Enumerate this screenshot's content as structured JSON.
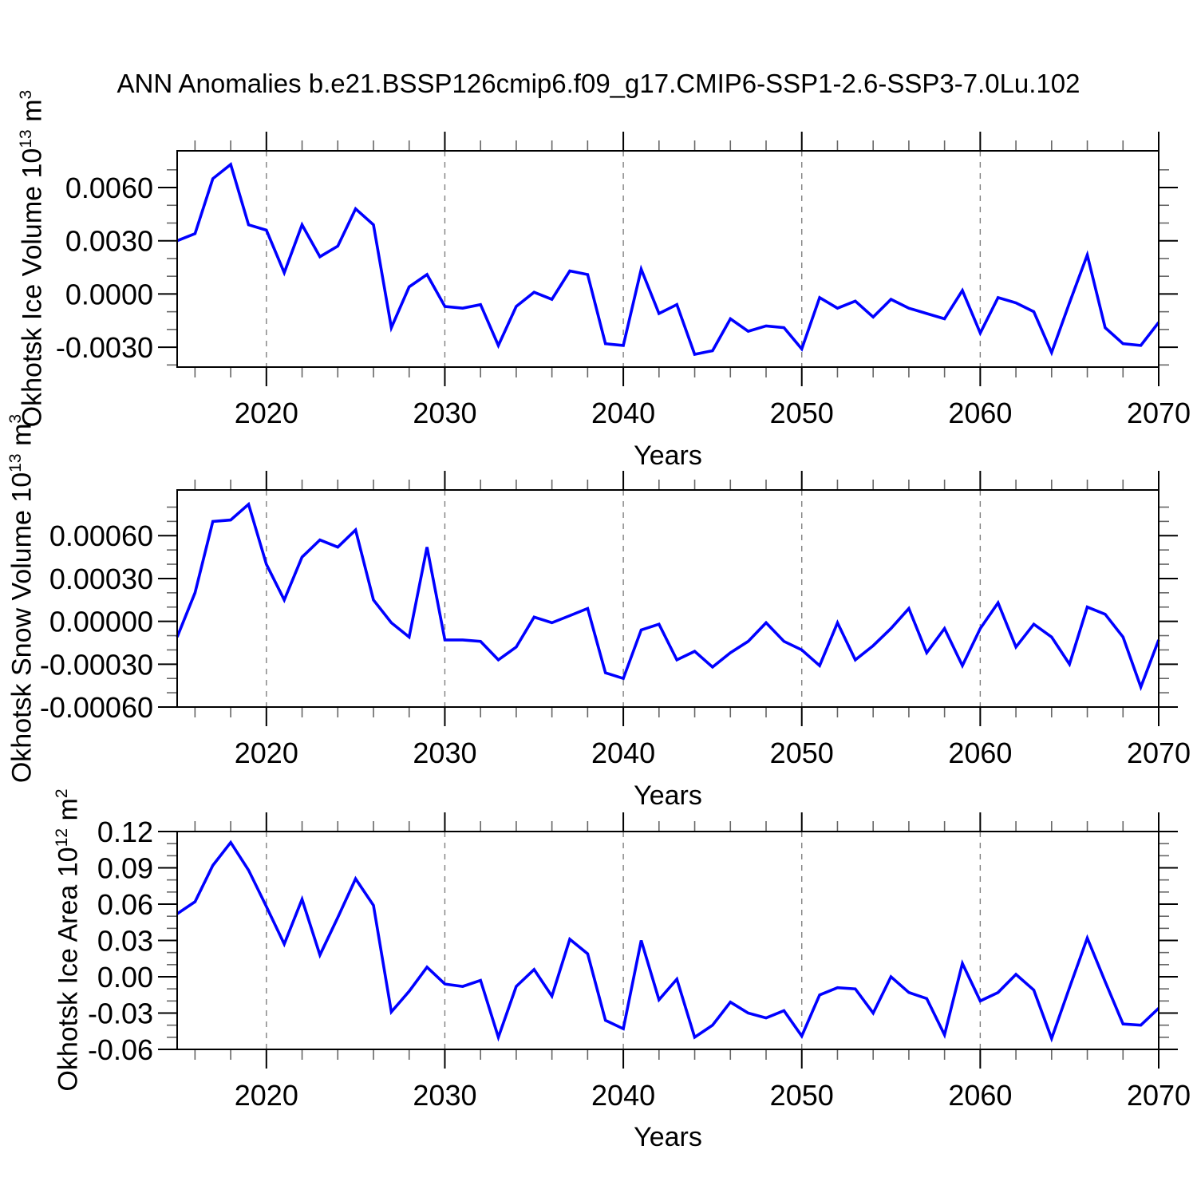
{
  "title": "ANN Anomalies b.e21.BSSP126cmip6.f09_g17.CMIP6-SSP1-2.6-SSP3-7.0Lu.102",
  "line_color": "#0000ff",
  "grid_color": "#808080",
  "chart_data": [
    {
      "type": "line",
      "name": "okhotsk-ice-volume",
      "ylabel_text": "Okhotsk Ice Volume 10^13 m^3",
      "ylabel_parts": {
        "base": "Okhotsk Ice Volume 10",
        "exp": "13",
        "unit": " m",
        "unit_exp": "3"
      },
      "xlabel": "Years",
      "x_start": 2015,
      "x_end": 2070,
      "xlim": [
        2015,
        2070
      ],
      "ylim": [
        -0.00412,
        0.00807
      ],
      "xticks": [
        2020,
        2030,
        2040,
        2050,
        2060,
        2070
      ],
      "xtick_labels": [
        "2020",
        "2030",
        "2040",
        "2050",
        "2060",
        "2070"
      ],
      "xticks_minor_step": 2,
      "yticks": [
        0.006,
        0.003,
        0.0,
        -0.003
      ],
      "ytick_labels": [
        "0.0060",
        "0.0030",
        "0.0000",
        "-0.0030"
      ],
      "yticks_minor_step": 0.001,
      "gridlines_x": [
        2020,
        2030,
        2040,
        2050,
        2060
      ],
      "values": [
        0.003,
        0.0034,
        0.0065,
        0.0073,
        0.0039,
        0.0036,
        0.0012,
        0.0039,
        0.0021,
        0.0027,
        0.0048,
        0.0039,
        -0.0019,
        0.0004,
        0.0011,
        -0.0007,
        -0.0008,
        -0.0006,
        -0.0029,
        -0.0007,
        0.0001,
        -0.0003,
        0.0013,
        0.0011,
        -0.0028,
        -0.0029,
        0.0014,
        -0.0011,
        -0.0006,
        -0.0034,
        -0.0032,
        -0.0014,
        -0.0021,
        -0.0018,
        -0.0019,
        -0.0031,
        -0.0002,
        -0.0008,
        -0.0004,
        -0.0013,
        -0.0003,
        -0.0008,
        -0.0011,
        -0.0014,
        0.0002,
        -0.0022,
        -0.0002,
        -0.0005,
        -0.001,
        -0.0033,
        -0.0005,
        0.0022,
        -0.0019,
        -0.0028,
        -0.0029,
        -0.0016
      ]
    },
    {
      "type": "line",
      "name": "okhotsk-snow-volume",
      "ylabel_text": "Okhotsk Snow Volume 10^13 m^3",
      "ylabel_parts": {
        "base": "Okhotsk Snow Volume 10",
        "exp": "13",
        "unit": " m",
        "unit_exp": "3"
      },
      "xlabel": "Years",
      "x_start": 2015,
      "x_end": 2070,
      "xlim": [
        2015,
        2070
      ],
      "ylim": [
        -0.0006,
        0.00092
      ],
      "xticks": [
        2020,
        2030,
        2040,
        2050,
        2060,
        2070
      ],
      "xtick_labels": [
        "2020",
        "2030",
        "2040",
        "2050",
        "2060",
        "2070"
      ],
      "xticks_minor_step": 2,
      "yticks": [
        0.0006,
        0.0003,
        0.0,
        -0.0003,
        -0.0006
      ],
      "ytick_labels": [
        "0.00060",
        "0.00030",
        "0.00000",
        "-0.00030",
        "-0.00060"
      ],
      "yticks_minor_step": 0.0001,
      "gridlines_x": [
        2020,
        2030,
        2040,
        2050,
        2060
      ],
      "values": [
        -0.00011,
        0.0002,
        0.0007,
        0.00071,
        0.00082,
        0.0004,
        0.00015,
        0.00045,
        0.00057,
        0.00052,
        0.00064,
        0.00015,
        -1e-05,
        -0.00011,
        0.00052,
        -0.00013,
        -0.00013,
        -0.00014,
        -0.00027,
        -0.00018,
        3e-05,
        -1e-05,
        4e-05,
        9e-05,
        -0.00036,
        -0.0004,
        -6e-05,
        -2e-05,
        -0.00027,
        -0.00021,
        -0.00032,
        -0.00022,
        -0.00014,
        -1e-05,
        -0.00014,
        -0.0002,
        -0.00031,
        -1e-05,
        -0.00027,
        -0.00017,
        -5e-05,
        9e-05,
        -0.00022,
        -5e-05,
        -0.00031,
        -5e-05,
        0.00013,
        -0.00018,
        -2e-05,
        -0.00011,
        -0.0003,
        0.0001,
        5e-05,
        -0.00011,
        -0.00046,
        -0.00013
      ]
    },
    {
      "type": "line",
      "name": "okhotsk-ice-area",
      "ylabel_text": "Okhotsk Ice Area 10^12 m^2",
      "ylabel_parts": {
        "base": "Okhotsk Ice Area 10",
        "exp": "12",
        "unit": " m",
        "unit_exp": "2"
      },
      "xlabel": "Years",
      "x_start": 2015,
      "x_end": 2070,
      "xlim": [
        2015,
        2070
      ],
      "ylim": [
        -0.06,
        0.12
      ],
      "xticks": [
        2020,
        2030,
        2040,
        2050,
        2060,
        2070
      ],
      "xtick_labels": [
        "2020",
        "2030",
        "2040",
        "2050",
        "2060",
        "2070"
      ],
      "xticks_minor_step": 2,
      "yticks": [
        0.12,
        0.09,
        0.06,
        0.03,
        0.0,
        -0.03,
        -0.06
      ],
      "ytick_labels": [
        "0.12",
        "0.09",
        "0.06",
        "0.03",
        "0.00",
        "-0.03",
        "-0.06"
      ],
      "yticks_minor_step": 0.01,
      "gridlines_x": [
        2020,
        2030,
        2040,
        2050,
        2060
      ],
      "values": [
        0.052,
        0.062,
        0.092,
        0.111,
        0.088,
        0.058,
        0.027,
        0.064,
        0.018,
        0.049,
        0.081,
        0.059,
        -0.029,
        -0.012,
        0.008,
        -0.006,
        -0.008,
        -0.003,
        -0.05,
        -0.008,
        0.006,
        -0.016,
        0.031,
        0.019,
        -0.036,
        -0.043,
        0.03,
        -0.019,
        -0.002,
        -0.05,
        -0.04,
        -0.021,
        -0.03,
        -0.034,
        -0.028,
        -0.049,
        -0.015,
        -0.009,
        -0.01,
        -0.03,
        0.0,
        -0.013,
        -0.018,
        -0.048,
        0.011,
        -0.02,
        -0.013,
        0.002,
        -0.011,
        -0.051,
        -0.009,
        0.032,
        -0.004,
        -0.039,
        -0.04,
        -0.026
      ]
    }
  ]
}
